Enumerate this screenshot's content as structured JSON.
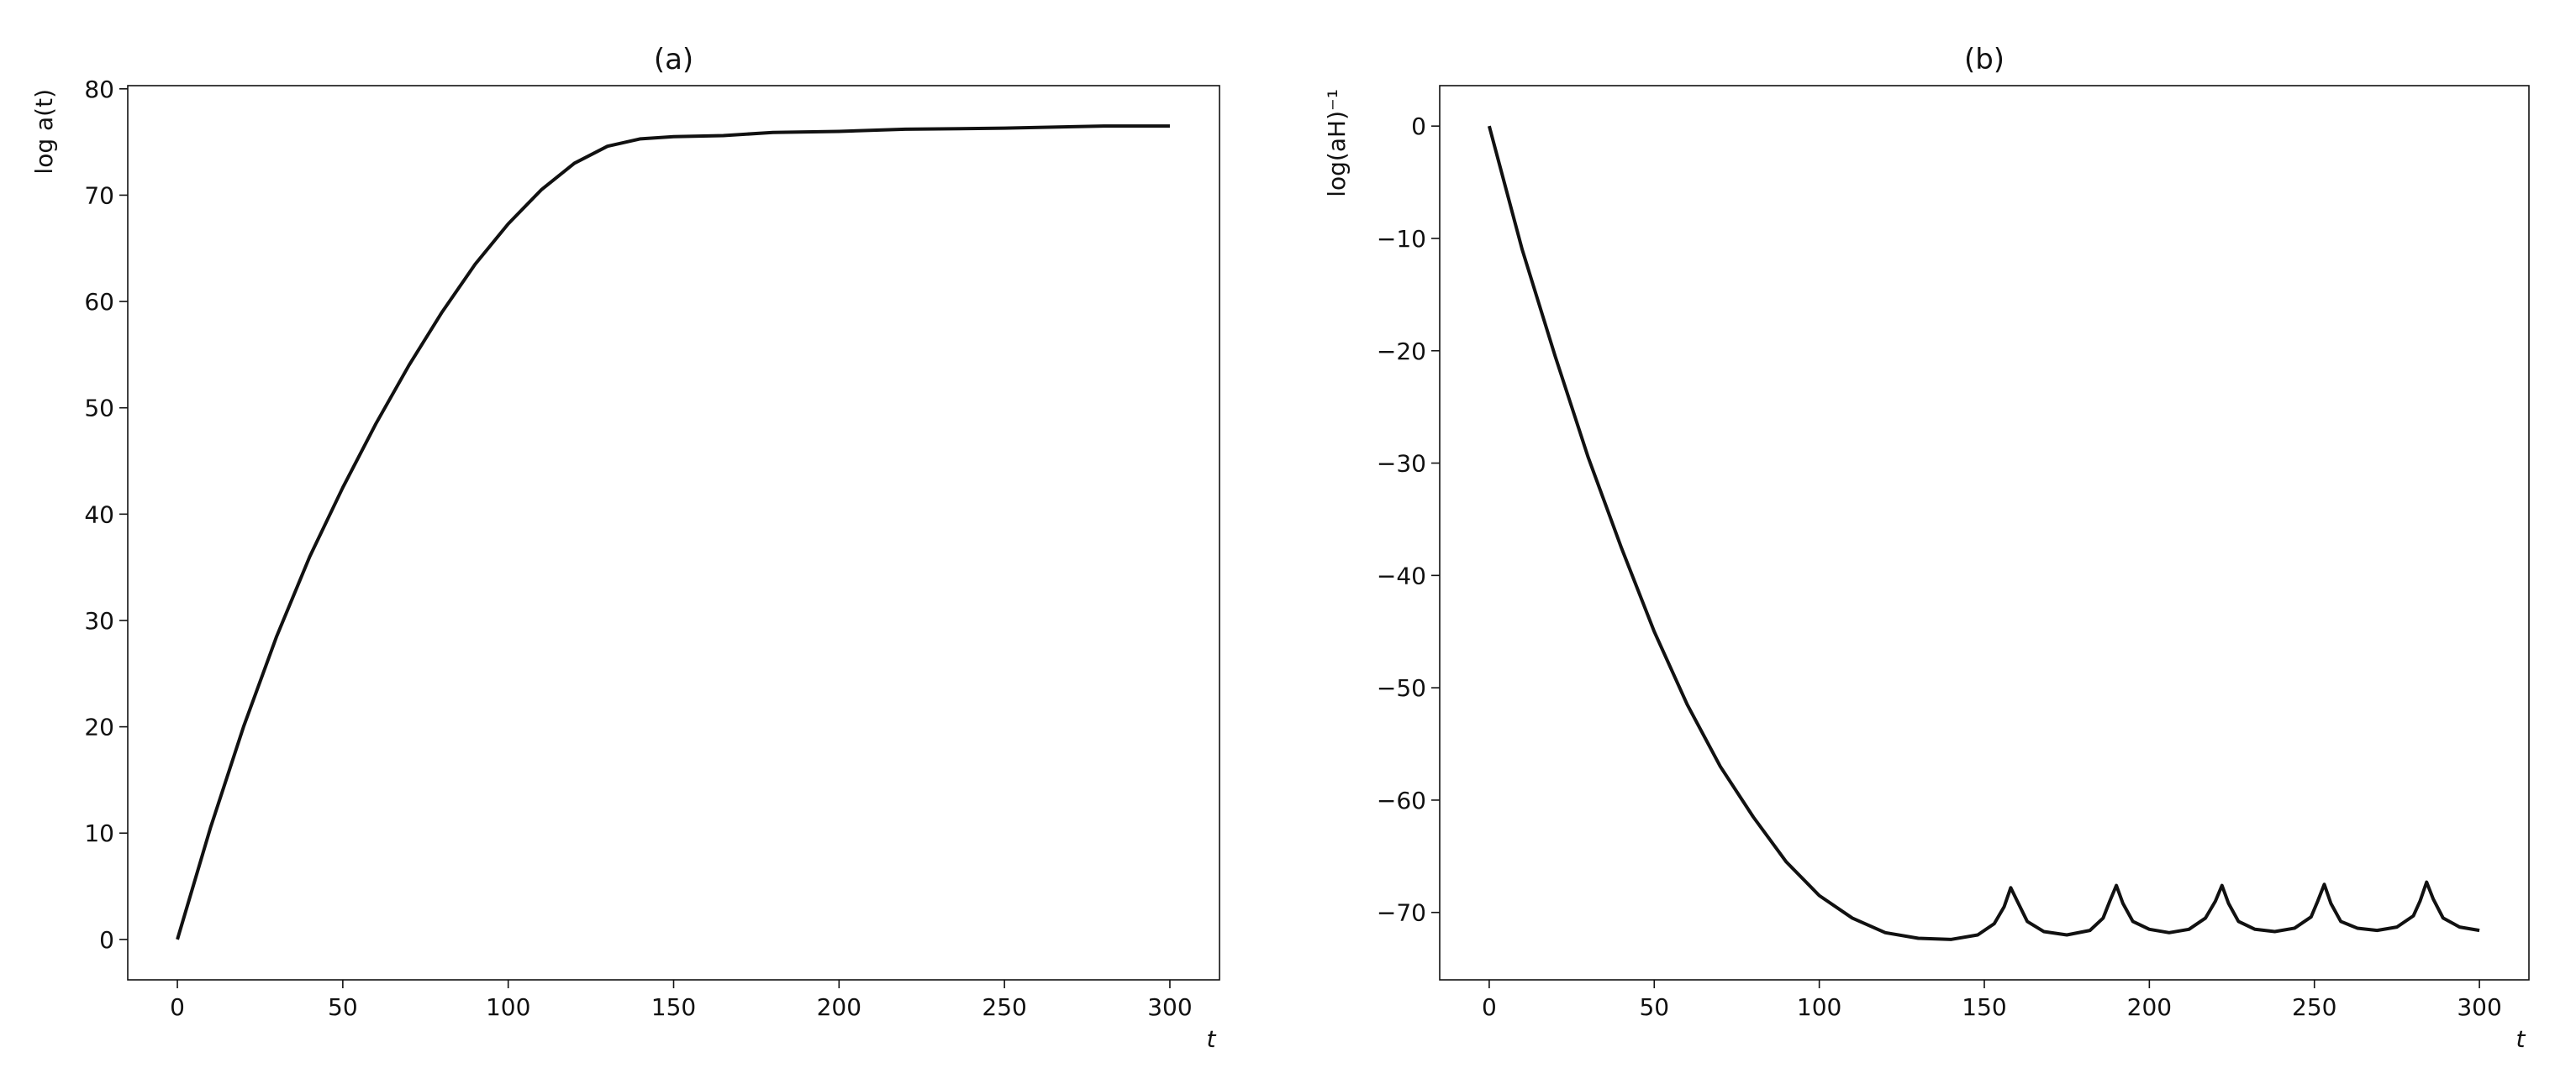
{
  "chart_data": [
    {
      "type": "line",
      "title": "(a)",
      "xlabel": "t",
      "ylabel": "log a(t)",
      "xlim": [
        -15,
        315
      ],
      "ylim": [
        -3.8,
        80.3
      ],
      "xticks": [
        0,
        50,
        100,
        150,
        200,
        250,
        300
      ],
      "yticks": [
        0,
        10,
        20,
        30,
        40,
        50,
        60,
        70,
        80
      ],
      "series": [
        {
          "color": "#111111",
          "x": [
            0,
            10,
            20,
            30,
            40,
            50,
            60,
            70,
            80,
            90,
            100,
            110,
            120,
            130,
            140,
            150,
            165,
            180,
            200,
            220,
            250,
            280,
            300
          ],
          "values": [
            0,
            10.5,
            20,
            28.5,
            36,
            42.5,
            48.5,
            54,
            59,
            63.5,
            67.3,
            70.5,
            73,
            74.6,
            75.3,
            75.5,
            75.6,
            75.9,
            76.0,
            76.2,
            76.3,
            76.5,
            76.5
          ]
        }
      ]
    },
    {
      "type": "line",
      "title": "(b)",
      "xlabel": "t",
      "ylabel": "log(aH)⁻¹",
      "xlim": [
        -15,
        315
      ],
      "ylim": [
        -76.0,
        3.6
      ],
      "xticks": [
        0,
        50,
        100,
        150,
        200,
        250,
        300
      ],
      "yticks": [
        0,
        {
          "value": -10,
          "label": "−10"
        },
        {
          "value": -20,
          "label": "−20"
        },
        {
          "value": -30,
          "label": "−30"
        },
        {
          "value": -40,
          "label": "−40"
        },
        {
          "value": -50,
          "label": "−50"
        },
        {
          "value": -60,
          "label": "−60"
        },
        {
          "value": -70,
          "label": "−70"
        }
      ],
      "series": [
        {
          "color": "#111111",
          "x": [
            0,
            10,
            20,
            30,
            40,
            50,
            60,
            70,
            80,
            90,
            100,
            110,
            120,
            130,
            140,
            148,
            153,
            156,
            158,
            160,
            163,
            168,
            175,
            182,
            186,
            188,
            190,
            192,
            195,
            200,
            206,
            212,
            217,
            220,
            222,
            224,
            227,
            232,
            238,
            244,
            249,
            251,
            253,
            255,
            258,
            263,
            269,
            275,
            280,
            282,
            284,
            286,
            289,
            294,
            300
          ],
          "values": [
            0,
            -11,
            -20.5,
            -29.5,
            -37.5,
            -45,
            -51.5,
            -57,
            -61.5,
            -65.5,
            -68.5,
            -70.5,
            -71.8,
            -72.3,
            -72.4,
            -72.0,
            -71,
            -69.5,
            -67.8,
            -69,
            -70.8,
            -71.7,
            -72.0,
            -71.6,
            -70.5,
            -69,
            -67.6,
            -69.2,
            -70.8,
            -71.5,
            -71.8,
            -71.5,
            -70.5,
            -69,
            -67.6,
            -69.2,
            -70.8,
            -71.5,
            -71.7,
            -71.4,
            -70.4,
            -69,
            -67.5,
            -69.2,
            -70.8,
            -71.4,
            -71.6,
            -71.3,
            -70.3,
            -69,
            -67.3,
            -68.8,
            -70.5,
            -71.3,
            -71.6
          ]
        }
      ]
    }
  ]
}
